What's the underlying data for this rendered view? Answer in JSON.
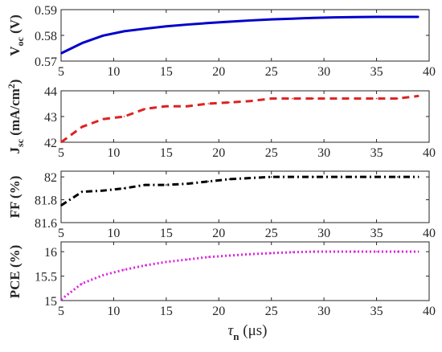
{
  "chart_data": [
    {
      "type": "line",
      "ylabel": {
        "main": "V",
        "sub": "oc",
        "unit": " (V)"
      },
      "xlim": [
        5,
        40
      ],
      "ylim": [
        0.57,
        0.59
      ],
      "yticks": [
        "0.57",
        "0.58",
        "0.59"
      ],
      "xticks": [
        "5",
        "10",
        "15",
        "20",
        "25",
        "30",
        "35",
        "40"
      ],
      "line_style": "solid",
      "color": "#0000cc",
      "x": [
        5,
        7,
        9,
        11,
        13,
        15,
        17,
        19,
        21,
        23,
        25,
        27,
        29,
        31,
        33,
        35,
        37,
        39
      ],
      "y": [
        0.573,
        0.577,
        0.5799,
        0.5816,
        0.5826,
        0.5835,
        0.5842,
        0.5848,
        0.5853,
        0.5858,
        0.5862,
        0.5865,
        0.5868,
        0.587,
        0.5871,
        0.5872,
        0.5872,
        0.5872
      ]
    },
    {
      "type": "line",
      "ylabel": {
        "main": "J",
        "sub": "sc",
        "unit": " (mA/cm",
        "sup": "2",
        "close": ")"
      },
      "xlim": [
        5,
        40
      ],
      "ylim": [
        42,
        44
      ],
      "yticks": [
        "42",
        "43",
        "44"
      ],
      "xticks": [
        "5",
        "10",
        "15",
        "20",
        "25",
        "30",
        "35",
        "40"
      ],
      "line_style": "dashed",
      "color": "#dd2222",
      "x": [
        5,
        7,
        9,
        11,
        13,
        15,
        17,
        19,
        21,
        23,
        25,
        27,
        29,
        31,
        33,
        35,
        37,
        39
      ],
      "y": [
        42.0,
        42.6,
        42.9,
        43.0,
        43.3,
        43.4,
        43.4,
        43.5,
        43.55,
        43.6,
        43.7,
        43.7,
        43.7,
        43.7,
        43.7,
        43.7,
        43.7,
        43.8
      ]
    },
    {
      "type": "line",
      "ylabel": {
        "main": "FF (%)"
      },
      "xlim": [
        5,
        40
      ],
      "ylim": [
        81.6,
        82.05
      ],
      "yticks": [
        "81.6",
        "81.8",
        "82"
      ],
      "xticks": [
        "5",
        "10",
        "15",
        "20",
        "25",
        "30",
        "35",
        "40"
      ],
      "line_style": "dashdot",
      "color": "#000000",
      "x": [
        5,
        7,
        9,
        11,
        13,
        15,
        17,
        19,
        21,
        23,
        25,
        27,
        29,
        31,
        33,
        35,
        37,
        39
      ],
      "y": [
        81.75,
        81.87,
        81.88,
        81.9,
        81.93,
        81.93,
        81.94,
        81.96,
        81.98,
        81.99,
        82.0,
        82.0,
        82.0,
        82.0,
        82.0,
        82.0,
        82.0,
        82.0
      ]
    },
    {
      "type": "line",
      "ylabel": {
        "main": "PCE (%)"
      },
      "xlabel": {
        "main": "τ",
        "sub": "n",
        "unit": " (μs)"
      },
      "xlim": [
        5,
        40
      ],
      "ylim": [
        15,
        16.2
      ],
      "yticks": [
        "15",
        "15.5",
        "16"
      ],
      "xticks": [
        "5",
        "10",
        "15",
        "20",
        "25",
        "30",
        "35",
        "40"
      ],
      "line_style": "dotted",
      "color": "#dd22dd",
      "x": [
        5,
        7,
        9,
        11,
        13,
        15,
        17,
        19,
        21,
        23,
        25,
        27,
        29,
        31,
        33,
        35,
        37,
        39
      ],
      "y": [
        15.02,
        15.35,
        15.52,
        15.63,
        15.72,
        15.79,
        15.84,
        15.89,
        15.92,
        15.95,
        15.97,
        15.99,
        16.0,
        16.0,
        16.0,
        16.0,
        16.0,
        16.0
      ]
    }
  ]
}
